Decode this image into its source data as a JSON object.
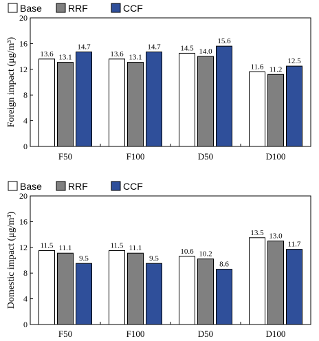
{
  "chart_data": [
    {
      "type": "bar",
      "categories": [
        "F50",
        "F100",
        "D50",
        "D100"
      ],
      "series": [
        {
          "name": "Base",
          "values": [
            13.6,
            13.6,
            14.5,
            11.6
          ]
        },
        {
          "name": "RRF",
          "values": [
            13.1,
            13.1,
            14.0,
            11.2
          ]
        },
        {
          "name": "CCF",
          "values": [
            14.7,
            14.7,
            15.6,
            12.5
          ]
        }
      ],
      "ylabel": "Foreign impact (μg/m³)",
      "ylim": [
        0,
        20
      ],
      "yticks": [
        "0",
        "4",
        "8",
        "12",
        "16",
        "20"
      ],
      "legend": "top-left",
      "grid": false
    },
    {
      "type": "bar",
      "categories": [
        "F50",
        "F100",
        "D50",
        "D100"
      ],
      "series": [
        {
          "name": "Base",
          "values": [
            11.5,
            11.5,
            10.6,
            13.5
          ]
        },
        {
          "name": "RRF",
          "values": [
            11.1,
            11.1,
            10.2,
            13.0
          ]
        },
        {
          "name": "CCF",
          "values": [
            9.5,
            9.5,
            8.6,
            11.7
          ]
        }
      ],
      "ylabel": "Domestic impact (μg/m³)",
      "ylim": [
        0,
        20
      ],
      "yticks": [
        "0",
        "4",
        "8",
        "12",
        "16",
        "20"
      ],
      "legend": "top-left",
      "grid": false
    }
  ],
  "colors": {
    "Base": "#ffffff",
    "RRF": "#808080",
    "CCF": "#2f4f9a"
  }
}
